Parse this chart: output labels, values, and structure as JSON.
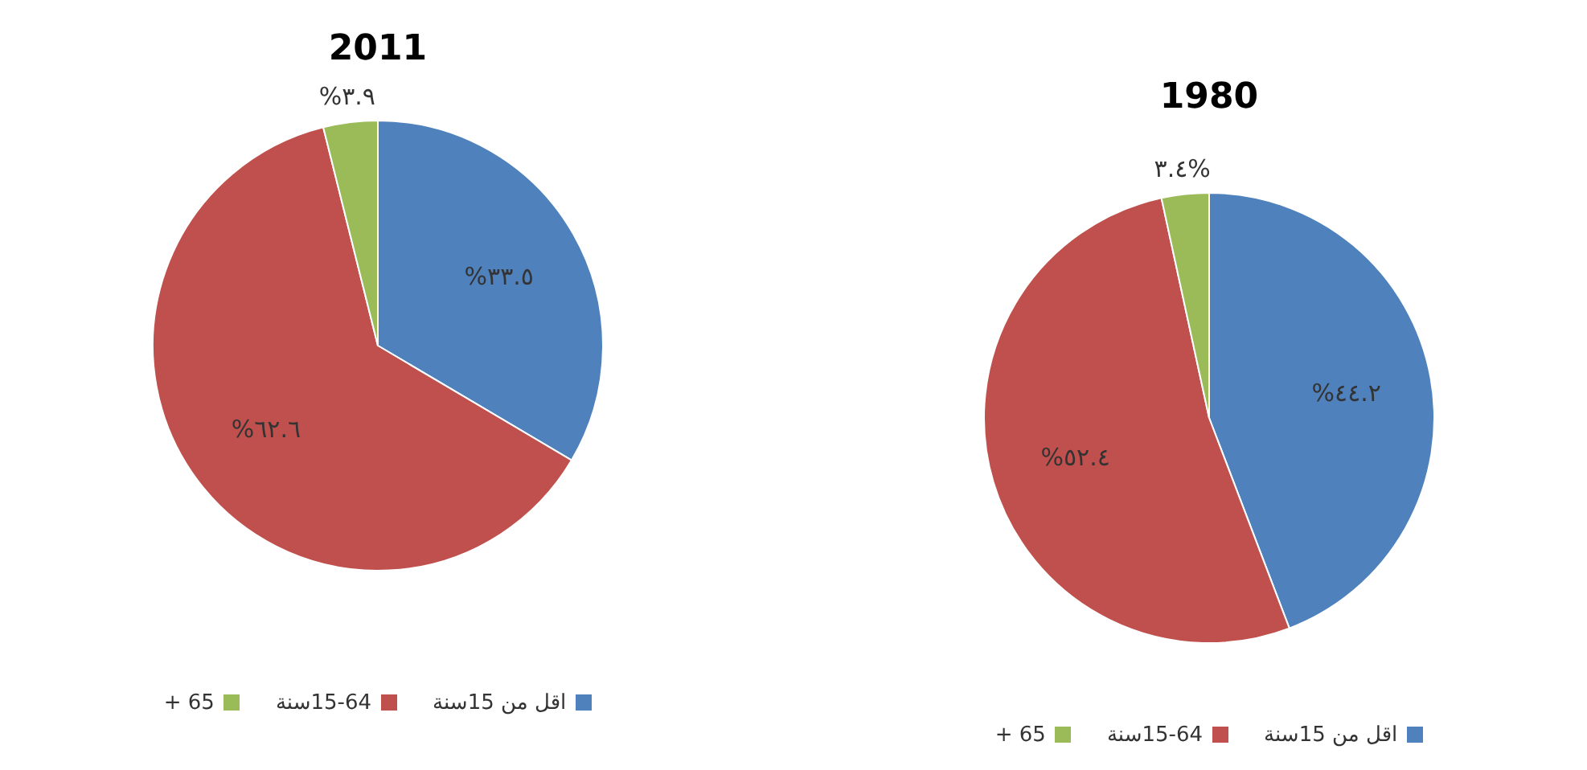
{
  "chart_data": [
    {
      "type": "pie",
      "title": "2011",
      "categories": [
        "اقل من 15سنة",
        "15-64سنة",
        "65 +"
      ],
      "values": [
        33.5,
        62.6,
        3.9
      ],
      "colors": [
        "#4f81bd",
        "#c0504d",
        "#9bbb59"
      ],
      "value_labels": [
        "%٣٣.٥",
        "%٦٢.٦",
        "%٣.٩"
      ],
      "legend": "bottom"
    },
    {
      "type": "pie",
      "title": "1980",
      "categories": [
        "اقل من 15سنة",
        "15-64سنة",
        "65 +"
      ],
      "values": [
        44.2,
        52.4,
        3.4
      ],
      "colors": [
        "#4f81bd",
        "#c0504d",
        "#9bbb59"
      ],
      "value_labels": [
        "%٤٤.٢",
        "%٥٢.٤",
        "٣.٤%"
      ],
      "legend": "bottom"
    }
  ]
}
